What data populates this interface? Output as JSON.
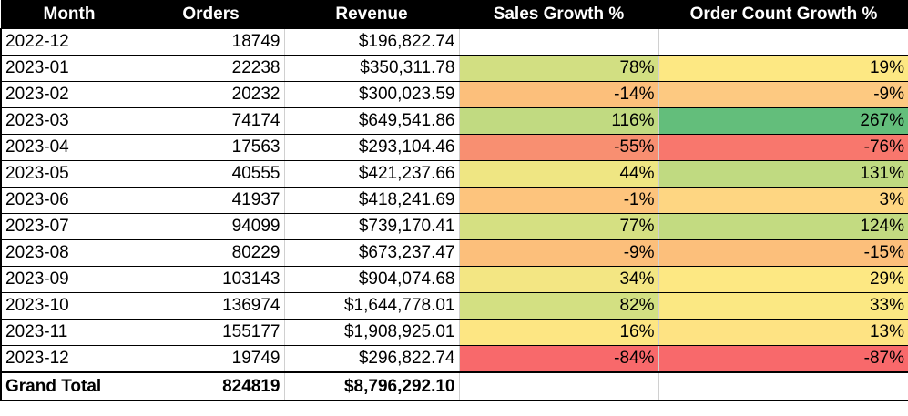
{
  "columns": [
    "Month",
    "Orders",
    "Revenue",
    "Sales Growth %",
    "Order Count Growth %"
  ],
  "rows": [
    {
      "month": "2022-12",
      "orders": "18749",
      "revenue": "$196,822.74",
      "sales_growth": "",
      "order_growth": "",
      "sales_color": "#ffffff",
      "order_color": "#ffffff"
    },
    {
      "month": "2023-01",
      "orders": "22238",
      "revenue": "$350,311.78",
      "sales_growth": "78%",
      "order_growth": "19%",
      "sales_color": "#d2df82",
      "order_color": "#fde883"
    },
    {
      "month": "2023-02",
      "orders": "20232",
      "revenue": "$300,023.59",
      "sales_growth": "-14%",
      "order_growth": "-9%",
      "sales_color": "#fcbf7b",
      "order_color": "#fdc981"
    },
    {
      "month": "2023-03",
      "orders": "74174",
      "revenue": "$649,541.86",
      "sales_growth": "116%",
      "order_growth": "267%",
      "sales_color": "#c1da81",
      "order_color": "#63be7b"
    },
    {
      "month": "2023-04",
      "orders": "17563",
      "revenue": "$293,104.46",
      "sales_growth": "-55%",
      "order_growth": "-76%",
      "sales_color": "#f88f71",
      "order_color": "#f8776d"
    },
    {
      "month": "2023-05",
      "orders": "40555",
      "revenue": "$421,237.66",
      "sales_growth": "44%",
      "order_growth": "131%",
      "sales_color": "#efe683",
      "order_color": "#c0da81"
    },
    {
      "month": "2023-06",
      "orders": "41937",
      "revenue": "$418,241.69",
      "sales_growth": "-1%",
      "order_growth": "3%",
      "sales_color": "#fdc47d",
      "order_color": "#fed682"
    },
    {
      "month": "2023-07",
      "orders": "94099",
      "revenue": "$739,170.41",
      "sales_growth": "77%",
      "order_growth": "124%",
      "sales_color": "#d5e082",
      "order_color": "#c3db81"
    },
    {
      "month": "2023-08",
      "orders": "80229",
      "revenue": "$673,237.47",
      "sales_growth": "-9%",
      "order_growth": "-15%",
      "sales_color": "#fcbf7b",
      "order_color": "#fcbf7b"
    },
    {
      "month": "2023-09",
      "orders": "103143",
      "revenue": "$904,074.68",
      "sales_growth": "34%",
      "order_growth": "29%",
      "sales_color": "#f3e683",
      "order_color": "#fde883"
    },
    {
      "month": "2023-10",
      "orders": "136974",
      "revenue": "$1,644,778.01",
      "sales_growth": "82%",
      "order_growth": "33%",
      "sales_color": "#d3e082",
      "order_color": "#fbe883"
    },
    {
      "month": "2023-11",
      "orders": "155177",
      "revenue": "$1,908,925.01",
      "sales_growth": "16%",
      "order_growth": "13%",
      "sales_color": "#fde683",
      "order_color": "#fee383"
    },
    {
      "month": "2023-12",
      "orders": "19749",
      "revenue": "$296,822.74",
      "sales_growth": "-84%",
      "order_growth": "-87%",
      "sales_color": "#f8696b",
      "order_color": "#f8696b"
    }
  ],
  "total": {
    "label": "Grand Total",
    "orders": "824819",
    "revenue": "$8,796,292.10"
  }
}
